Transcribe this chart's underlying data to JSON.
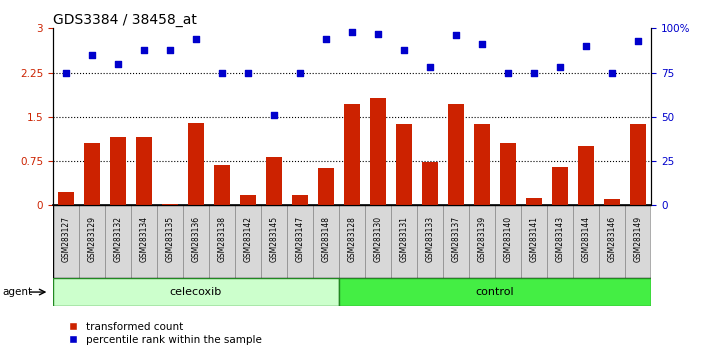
{
  "title": "GDS3384 / 38458_at",
  "samples": [
    "GSM283127",
    "GSM283129",
    "GSM283132",
    "GSM283134",
    "GSM283135",
    "GSM283136",
    "GSM283138",
    "GSM283142",
    "GSM283145",
    "GSM283147",
    "GSM283148",
    "GSM283128",
    "GSM283130",
    "GSM283131",
    "GSM283133",
    "GSM283137",
    "GSM283139",
    "GSM283140",
    "GSM283141",
    "GSM283143",
    "GSM283144",
    "GSM283146",
    "GSM283149"
  ],
  "red_bars": [
    0.22,
    1.05,
    1.15,
    1.15,
    0.03,
    1.4,
    0.68,
    0.18,
    0.82,
    0.18,
    0.63,
    1.72,
    1.82,
    1.38,
    0.73,
    1.72,
    1.38,
    1.05,
    0.12,
    0.65,
    1.0,
    0.1,
    1.38
  ],
  "blue_pct": [
    75,
    85,
    80,
    88,
    88,
    94,
    75,
    75,
    51,
    75,
    94,
    98,
    97,
    88,
    78,
    96,
    91,
    75,
    75,
    78,
    90,
    75,
    93
  ],
  "celecoxib_count": 11,
  "control_count": 12,
  "ylim_left": [
    0,
    3
  ],
  "ylim_right": [
    0,
    100
  ],
  "yticks_left": [
    0,
    0.75,
    1.5,
    2.25,
    3
  ],
  "yticks_right": [
    0,
    25,
    50,
    75,
    100
  ],
  "bar_color": "#cc2200",
  "dot_color": "#0000cc",
  "bg_white": "#ffffff",
  "xtick_bg": "#d8d8d8",
  "celecoxib_color": "#ccffcc",
  "control_color": "#44ee44",
  "agent_label": "agent",
  "legend_red": "transformed count",
  "legend_blue": "percentile rank within the sample"
}
